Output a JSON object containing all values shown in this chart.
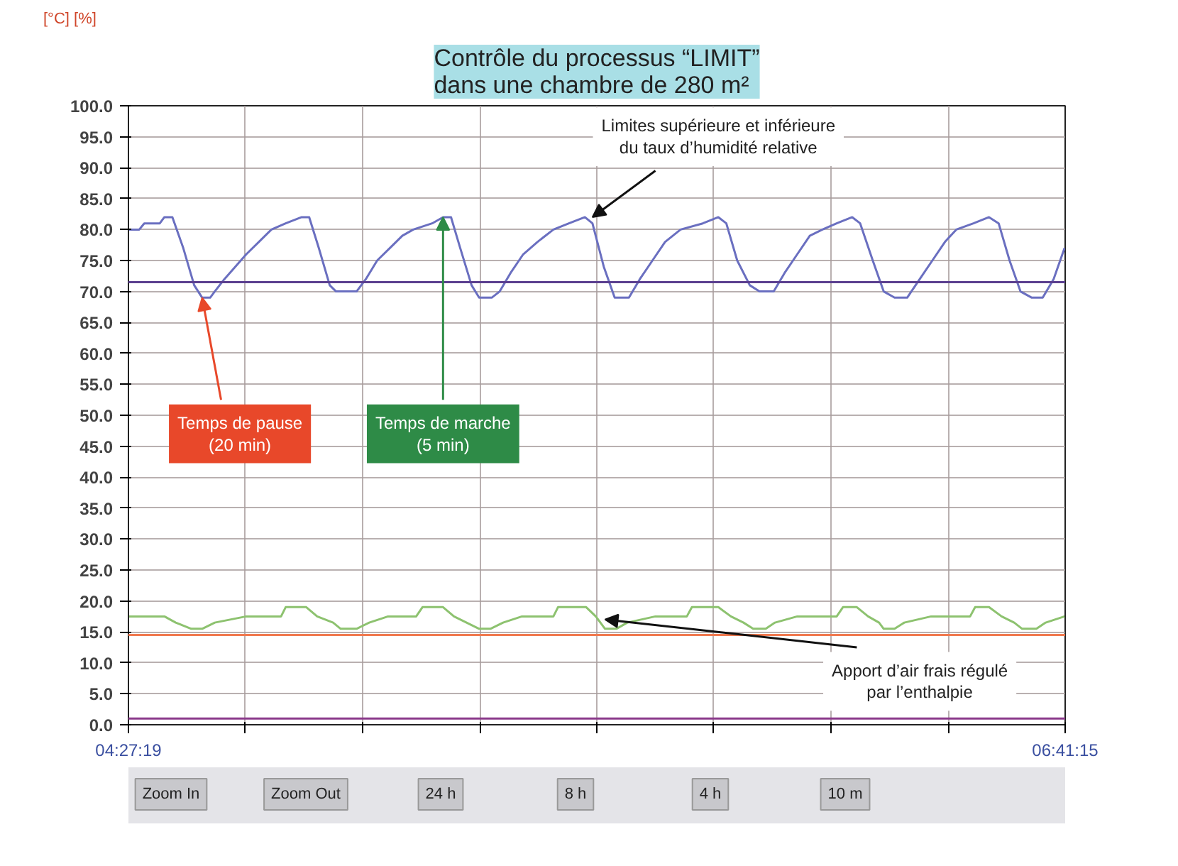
{
  "chart_data": {
    "type": "line",
    "title": "Contrôle du processus “LIMIT”\ndans une chambre de 280 m²",
    "ylabel": "[°C] [%]",
    "xlim": [
      4.4553,
      6.6875
    ],
    "xticks": [
      {
        "value": 4.4553,
        "label": "04:27:19"
      },
      {
        "value": 4.7343,
        "label": null
      },
      {
        "value": 5.0134,
        "label": null
      },
      {
        "value": 5.2924,
        "label": null
      },
      {
        "value": 5.5714,
        "label": null
      },
      {
        "value": 5.8504,
        "label": null
      },
      {
        "value": 6.1295,
        "label": null
      },
      {
        "value": 6.4085,
        "label": null
      },
      {
        "value": 6.6875,
        "label": "06:41:15"
      }
    ],
    "ylim": [
      0,
      100
    ],
    "yticks": [
      {
        "value": 0,
        "label": "0.0"
      },
      {
        "value": 5,
        "label": "5.0"
      },
      {
        "value": 10,
        "label": "10.0"
      },
      {
        "value": 15,
        "label": "15.0"
      },
      {
        "value": 20,
        "label": "20.0"
      },
      {
        "value": 25,
        "label": "25.0"
      },
      {
        "value": 30,
        "label": "30.0"
      },
      {
        "value": 35,
        "label": "35.0"
      },
      {
        "value": 40,
        "label": "40.0"
      },
      {
        "value": 45,
        "label": "45.0"
      },
      {
        "value": 50,
        "label": "50.0"
      },
      {
        "value": 55,
        "label": "55.0"
      },
      {
        "value": 60,
        "label": "60.0"
      },
      {
        "value": 65,
        "label": "65.0"
      },
      {
        "value": 70,
        "label": "70.0"
      },
      {
        "value": 75,
        "label": "75.0"
      },
      {
        "value": 80,
        "label": "80.0"
      },
      {
        "value": 85,
        "label": "85.0"
      },
      {
        "value": 90,
        "label": "90.0"
      },
      {
        "value": 95,
        "label": "95.0"
      },
      {
        "value": 100,
        "label": "100.0"
      }
    ],
    "grid": true,
    "series": [
      {
        "color": "#6a6fc0",
        "x": [
          4.456,
          4.481,
          4.493,
          4.53,
          4.541,
          4.56,
          4.586,
          4.612,
          4.631,
          4.65,
          4.661,
          4.684,
          4.71,
          4.736,
          4.766,
          4.796,
          4.83,
          4.868,
          4.886,
          4.909,
          4.935,
          4.95,
          4.999,
          5.021,
          5.048,
          5.078,
          5.108,
          5.134,
          5.179,
          5.205,
          5.224,
          5.246,
          5.273,
          5.291,
          5.321,
          5.34,
          5.366,
          5.396,
          5.43,
          5.468,
          5.505,
          5.543,
          5.561,
          5.588,
          5.614,
          5.648,
          5.674,
          5.704,
          5.734,
          5.771,
          5.824,
          5.861,
          5.88,
          5.906,
          5.936,
          5.959,
          5.993,
          6.019,
          6.049,
          6.079,
          6.109,
          6.143,
          6.18,
          6.199,
          6.229,
          6.255,
          6.281,
          6.311,
          6.341,
          6.371,
          6.401,
          6.428,
          6.469,
          6.506,
          6.529,
          6.555,
          6.581,
          6.608,
          6.634,
          6.66,
          6.686
        ],
        "values": [
          80,
          80,
          81,
          81,
          82,
          82,
          77,
          71,
          69,
          69,
          70,
          72,
          74,
          76,
          78,
          80,
          81,
          82,
          82,
          77,
          71,
          70,
          70,
          72,
          75,
          77,
          79,
          80,
          81,
          82,
          82,
          77,
          71,
          69,
          69,
          70,
          73,
          76,
          78,
          80,
          81,
          82,
          81,
          74,
          69,
          69,
          72,
          75,
          78,
          80,
          81,
          82,
          81,
          75,
          71,
          70,
          70,
          73,
          76,
          79,
          80,
          81,
          82,
          81,
          75,
          70,
          69,
          69,
          72,
          75,
          78,
          80,
          81,
          82,
          81,
          75,
          70,
          69,
          69,
          72,
          77
        ]
      },
      {
        "color": "#8dc26f",
        "x": [
          4.456,
          4.541,
          4.568,
          4.605,
          4.631,
          4.661,
          4.736,
          4.819,
          4.83,
          4.879,
          4.905,
          4.943,
          4.961,
          4.999,
          5.029,
          5.074,
          5.141,
          5.156,
          5.205,
          5.231,
          5.261,
          5.291,
          5.318,
          5.348,
          5.393,
          5.468,
          5.479,
          5.546,
          5.569,
          5.591,
          5.618,
          5.644,
          5.711,
          5.786,
          5.798,
          5.861,
          5.891,
          5.921,
          5.944,
          5.974,
          5.996,
          6.049,
          6.143,
          6.158,
          6.191,
          6.218,
          6.244,
          6.255,
          6.281,
          6.304,
          6.368,
          6.461,
          6.473,
          6.506,
          6.536,
          6.566,
          6.585,
          6.619,
          6.641,
          6.686
        ],
        "values": [
          17.5,
          17.5,
          16.5,
          15.5,
          15.5,
          16.5,
          17.5,
          17.5,
          19,
          19,
          17.5,
          16.5,
          15.5,
          15.5,
          16.5,
          17.5,
          17.5,
          19,
          19,
          17.5,
          16.5,
          15.5,
          15.5,
          16.5,
          17.5,
          17.5,
          19,
          19,
          17.5,
          15.5,
          15.5,
          16.5,
          17.5,
          17.5,
          19,
          19,
          17.5,
          16.5,
          15.5,
          15.5,
          16.5,
          17.5,
          17.5,
          19,
          19,
          17.5,
          16.5,
          15.5,
          15.5,
          16.5,
          17.5,
          17.5,
          19,
          19,
          17.5,
          16.5,
          15.5,
          15.5,
          16.5,
          17.5
        ]
      }
    ],
    "ref_lines": [
      {
        "axis": "y",
        "value": 71.5,
        "color": "#5b3f8f"
      },
      {
        "axis": "y",
        "value": 14.5,
        "color": "#f07a50"
      },
      {
        "axis": "y",
        "value": 1,
        "color": "#8b3a8b"
      }
    ],
    "annotations": [
      {
        "text": "Temps de pause\n(20 min)",
        "x": 4.631,
        "y": 69
      },
      {
        "text": "Temps de marche\n(5 min)",
        "x": 5.205,
        "y": 82
      },
      {
        "text": "Limites supérieure et inférieure\ndu taux d’humidité relative",
        "x": 5.561,
        "y": 82
      },
      {
        "text": "Apport d’air frais régulé\npar l’enthalpie",
        "x": 5.591,
        "y": 17
      },
      "Zoom In",
      "Zoom Out",
      "24 h",
      "8 h",
      "4 h",
      "10 m"
    ]
  }
}
